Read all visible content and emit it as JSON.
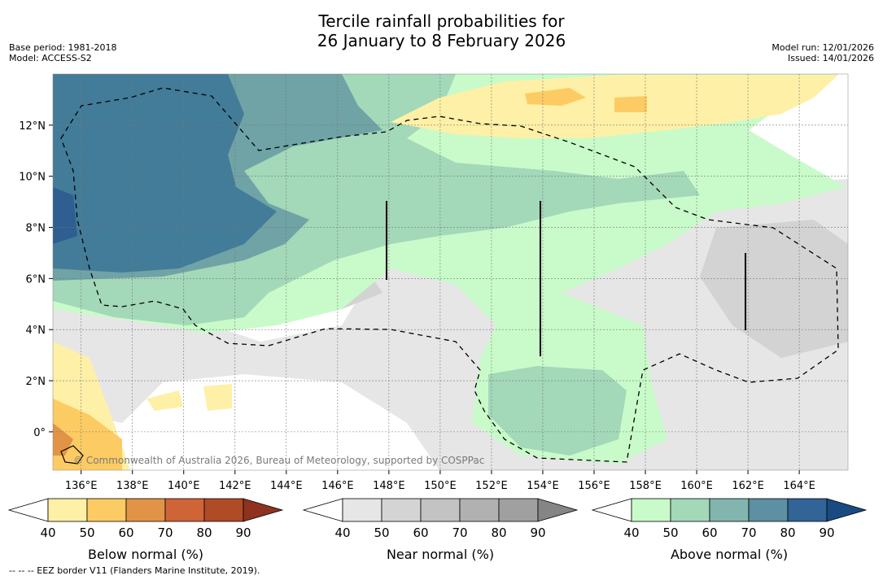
{
  "header": {
    "title_line1": "Tercile rainfall probabilities for",
    "title_line2": "26 January to 8 February 2026",
    "base_period": "Base period: 1981-2018",
    "model": "Model: ACCESS-S2",
    "model_run": "Model run: 12/01/2026",
    "issued": "Issued: 14/01/2026"
  },
  "chart_data": {
    "type": "heatmap",
    "title": "Tercile rainfall probabilities for 26 January to 8 February 2026",
    "x_ticks": [
      "136°E",
      "138°E",
      "140°E",
      "142°E",
      "144°E",
      "146°E",
      "148°E",
      "150°E",
      "152°E",
      "154°E",
      "156°E",
      "158°E",
      "160°E",
      "162°E",
      "164°E"
    ],
    "x_values": [
      136,
      138,
      140,
      142,
      144,
      146,
      148,
      150,
      152,
      154,
      156,
      158,
      160,
      162,
      164
    ],
    "y_ticks": [
      "12°N",
      "10°N",
      "8°N",
      "6°N",
      "4°N",
      "2°N",
      "0°"
    ],
    "y_values": [
      12,
      10,
      8,
      6,
      4,
      2,
      0
    ],
    "xlim": [
      134.9,
      165.9
    ],
    "ylim": [
      -1.5,
      14
    ],
    "grid": true,
    "colorbars": [
      {
        "label": "Below normal (%)",
        "ticks": [
          "40",
          "50",
          "60",
          "70",
          "80",
          "90"
        ],
        "colors": [
          "#fef0a6",
          "#fdcb63",
          "#e19445",
          "#cf6437",
          "#b04b27",
          "#8f3220"
        ]
      },
      {
        "label": "Near normal (%)",
        "ticks": [
          "40",
          "50",
          "60",
          "70",
          "80",
          "90"
        ],
        "colors": [
          "#e6e6e6",
          "#d4d4d4",
          "#c3c3c3",
          "#b1b1b1",
          "#a0a0a0",
          "#858585"
        ]
      },
      {
        "label": "Above normal (%)",
        "ticks": [
          "40",
          "50",
          "60",
          "70",
          "80",
          "90"
        ],
        "colors": [
          "#c8fbc9",
          "#a3d8b9",
          "#82b5ae",
          "#5c90a2",
          "#336497",
          "#1a4a82"
        ]
      }
    ]
  },
  "credit": "© Commonwealth of Australia 2026, Bureau of Meteorology, supported by COSPPac",
  "footnote": "-- --  -- EEZ border V11 (Flanders Marine Institute, 2019)."
}
